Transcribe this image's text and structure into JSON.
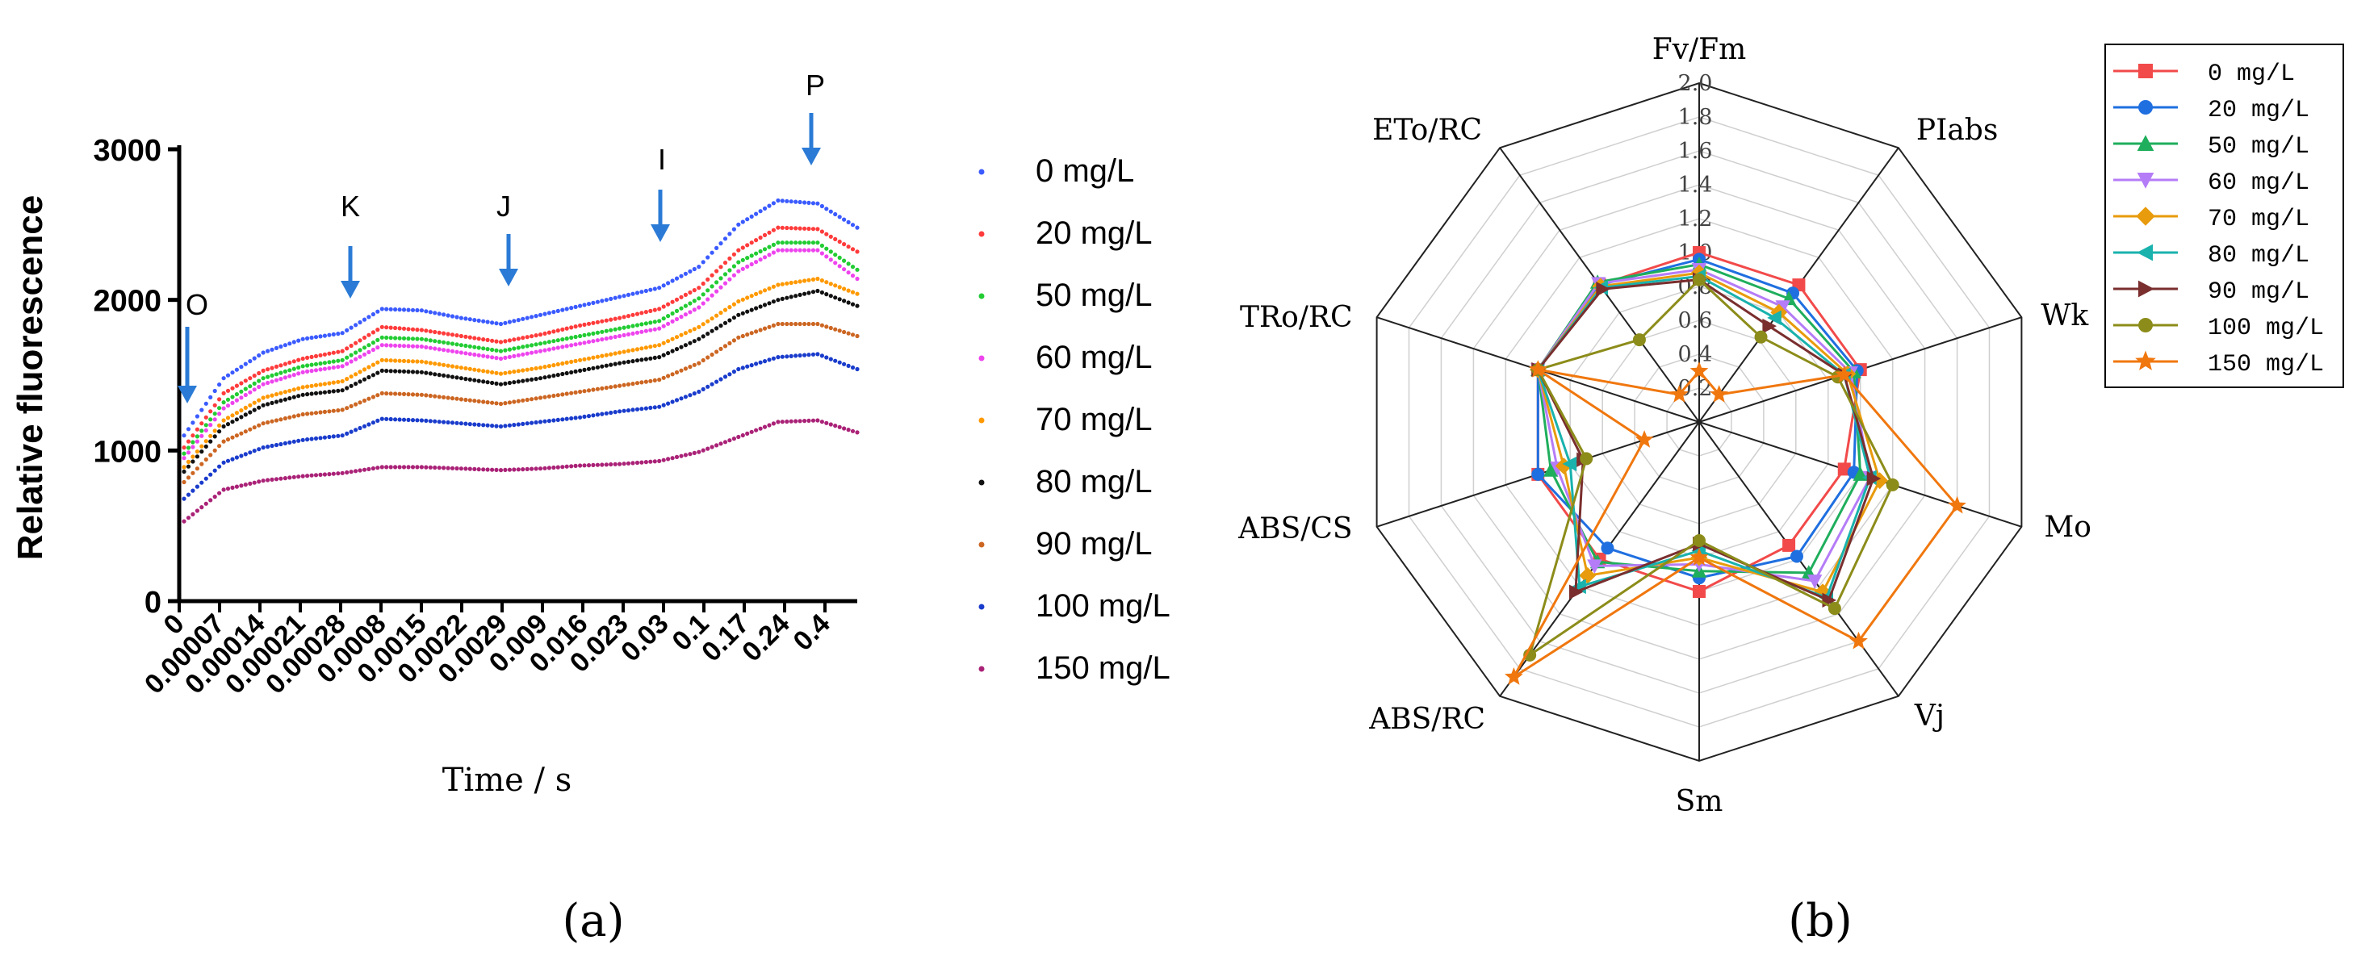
{
  "chart_data": [
    {
      "type": "scatter",
      "panel_label": "(a)",
      "xlabel": "Time / s",
      "ylabel": "Relative fluorescence",
      "ylim": [
        0,
        3000
      ],
      "y_ticks": [
        "0",
        "1000",
        "2000",
        "3000"
      ],
      "x_ticks": [
        "0",
        "0.00007",
        "0.00014",
        "0.00021",
        "0.00028",
        "0.0008",
        "0.0015",
        "0.0022",
        "0.0029",
        "0.009",
        "0.016",
        "0.023",
        "0.03",
        "0.1",
        "0.17",
        "0.24",
        "0.4"
      ],
      "phase_annotations": [
        {
          "label": "O",
          "x": 2e-05
        },
        {
          "label": "K",
          "x": 0.0003
        },
        {
          "label": "J",
          "x": 0.002
        },
        {
          "label": "I",
          "x": 0.03
        },
        {
          "label": "P",
          "x": 0.3
        }
      ],
      "series": [
        {
          "name": "0 mg/L",
          "color": "#3b5bff",
          "values": [
            1100,
            1480,
            1650,
            1740,
            1780,
            1940,
            1930,
            1880,
            1840,
            1900,
            1960,
            2020,
            2080,
            2220,
            2500,
            2660,
            2640,
            2480
          ]
        },
        {
          "name": "20 mg/L",
          "color": "#ff3b3b",
          "values": [
            1020,
            1380,
            1530,
            1610,
            1660,
            1820,
            1800,
            1760,
            1720,
            1770,
            1830,
            1880,
            1940,
            2080,
            2330,
            2480,
            2470,
            2320
          ]
        },
        {
          "name": "50 mg/L",
          "color": "#22cc33",
          "values": [
            980,
            1320,
            1480,
            1560,
            1600,
            1750,
            1740,
            1700,
            1660,
            1710,
            1760,
            1810,
            1860,
            2010,
            2250,
            2380,
            2380,
            2200
          ]
        },
        {
          "name": "60 mg/L",
          "color": "#ee44ee",
          "values": [
            950,
            1280,
            1440,
            1520,
            1560,
            1700,
            1690,
            1650,
            1610,
            1660,
            1710,
            1760,
            1810,
            1950,
            2190,
            2330,
            2330,
            2140
          ]
        },
        {
          "name": "70 mg/L",
          "color": "#ff9900",
          "values": [
            890,
            1200,
            1350,
            1420,
            1460,
            1600,
            1590,
            1550,
            1510,
            1550,
            1600,
            1650,
            1700,
            1820,
            1990,
            2100,
            2140,
            2040
          ]
        },
        {
          "name": "80 mg/L",
          "color": "#111111",
          "values": [
            860,
            1160,
            1300,
            1370,
            1400,
            1530,
            1520,
            1480,
            1440,
            1480,
            1530,
            1580,
            1620,
            1740,
            1900,
            2000,
            2060,
            1960
          ]
        },
        {
          "name": "90 mg/L",
          "color": "#cc6622",
          "values": [
            790,
            1060,
            1180,
            1240,
            1270,
            1380,
            1370,
            1340,
            1310,
            1350,
            1390,
            1430,
            1470,
            1580,
            1750,
            1840,
            1840,
            1760
          ]
        },
        {
          "name": "100 mg/L",
          "color": "#1a3ccc",
          "values": [
            680,
            920,
            1020,
            1070,
            1100,
            1210,
            1200,
            1180,
            1160,
            1190,
            1220,
            1260,
            1290,
            1390,
            1540,
            1620,
            1640,
            1540
          ]
        },
        {
          "name": "150 mg/L",
          "color": "#aa2277",
          "values": [
            530,
            740,
            800,
            830,
            850,
            890,
            890,
            880,
            870,
            880,
            900,
            910,
            930,
            990,
            1090,
            1190,
            1200,
            1120
          ]
        }
      ]
    },
    {
      "type": "radar",
      "panel_label": "(b)",
      "axes": [
        "Fv/Fm",
        "PIabs",
        "Wk",
        "Mo",
        "Vj",
        "Sm",
        "ABS/RC",
        "ABS/CS",
        "TRo/RC",
        "ETo/RC"
      ],
      "rlim": [
        0,
        2.0
      ],
      "r_ticks": [
        "0",
        "0.2",
        "0.4",
        "0.6",
        "0.8",
        "1.0",
        "1.2",
        "1.4",
        "1.6",
        "1.8",
        "2.0"
      ],
      "series": [
        {
          "name": "0 mg/L",
          "color": "#f24a4a",
          "marker": "square",
          "values": [
            1.0,
            1.0,
            1.0,
            0.9,
            0.9,
            1.0,
            1.0,
            1.0,
            1.0,
            1.0
          ]
        },
        {
          "name": "20 mg/L",
          "color": "#1f6fe0",
          "marker": "circle",
          "values": [
            0.96,
            0.94,
            0.98,
            0.96,
            0.98,
            0.92,
            0.92,
            1.0,
            1.0,
            1.0
          ]
        },
        {
          "name": "50 mg/L",
          "color": "#1fae5c",
          "marker": "triangle-up",
          "values": [
            0.93,
            0.9,
            0.96,
            1.0,
            1.1,
            0.88,
            1.02,
            0.92,
            1.0,
            1.02
          ]
        },
        {
          "name": "60 mg/L",
          "color": "#b57cf7",
          "marker": "triangle-down",
          "values": [
            0.9,
            0.84,
            0.94,
            1.06,
            1.16,
            0.84,
            1.05,
            0.88,
            1.0,
            1.01
          ]
        },
        {
          "name": "70 mg/L",
          "color": "#e89b0c",
          "marker": "diamond",
          "values": [
            0.88,
            0.8,
            0.92,
            1.12,
            1.24,
            0.8,
            1.12,
            0.84,
            1.0,
            0.99
          ]
        },
        {
          "name": "80 mg/L",
          "color": "#19b2ad",
          "marker": "triangle-left",
          "values": [
            0.86,
            0.76,
            0.9,
            1.06,
            1.28,
            0.76,
            1.2,
            0.8,
            1.0,
            0.98
          ]
        },
        {
          "name": "90 mg/L",
          "color": "#7a2e2e",
          "marker": "triangle-right",
          "values": [
            0.84,
            0.7,
            0.9,
            1.08,
            1.3,
            0.72,
            1.24,
            0.72,
            1.0,
            0.97
          ]
        },
        {
          "name": "100 mg/L",
          "color": "#8c8c1a",
          "marker": "circle",
          "values": [
            0.84,
            0.62,
            0.86,
            1.2,
            1.36,
            0.7,
            1.7,
            0.7,
            1.0,
            0.6
          ]
        },
        {
          "name": "150 mg/L",
          "color": "#f0770e",
          "marker": "star",
          "values": [
            0.3,
            0.2,
            0.9,
            1.6,
            1.6,
            0.8,
            1.86,
            0.34,
            1.0,
            0.2
          ]
        }
      ]
    }
  ]
}
